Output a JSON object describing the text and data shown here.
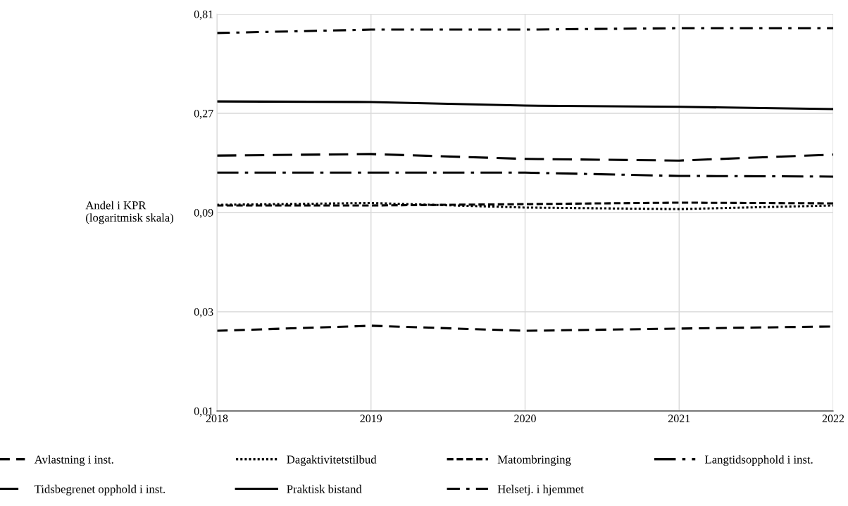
{
  "chart_data": {
    "type": "line",
    "ylabel": "Andel i KPR\n(logaritmisk skala)",
    "x": [
      2018,
      2019,
      2020,
      2021,
      2022
    ],
    "xlim": [
      2018,
      2022
    ],
    "xticks": [
      2018,
      2019,
      2020,
      2021,
      2022
    ],
    "log": "y",
    "ylim": [
      0.01,
      0.81
    ],
    "yticks": [
      {
        "value": 0.01,
        "label": "0,01"
      },
      {
        "value": 0.03,
        "label": "0,03"
      },
      {
        "value": 0.09,
        "label": "0,09"
      },
      {
        "value": 0.27,
        "label": "0,27"
      },
      {
        "value": 0.81,
        "label": "0,81"
      }
    ],
    "grid": true,
    "legend": "bottom",
    "marker": "none",
    "series": [
      {
        "name": "Avlastning i inst.",
        "color": "#000000",
        "line_style": "dashed",
        "values": [
          0.0243,
          0.0257,
          0.0243,
          0.0249,
          0.0255
        ]
      },
      {
        "name": "Dagaktivitetstilbud",
        "color": "#000000",
        "line_style": "dotted",
        "values": [
          0.098,
          0.1,
          0.0951,
          0.0935,
          0.0973
        ]
      },
      {
        "name": "Matombringing",
        "color": "#000000",
        "line_style": "short dash",
        "values": [
          0.0973,
          0.0973,
          0.0988,
          0.1004,
          0.0996
        ]
      },
      {
        "name": "Langtidsopphold i inst.",
        "color": "#000000",
        "line_style": "long dash dot",
        "values": [
          0.14,
          0.14,
          0.14,
          0.135,
          0.134
        ]
      },
      {
        "name": "Tidsbegrenet opphold i inst.",
        "color": "#000000",
        "line_style": "long dash",
        "values": [
          0.169,
          0.172,
          0.163,
          0.16,
          0.171
        ]
      },
      {
        "name": "Praktisk bistand",
        "color": "#000000",
        "line_style": "solid",
        "values": [
          0.308,
          0.306,
          0.294,
          0.29,
          0.283
        ]
      },
      {
        "name": "Helsetj. i hjemmet",
        "color": "#000000",
        "line_style": "dash dot",
        "values": [
          0.657,
          0.682,
          0.682,
          0.693,
          0.693
        ]
      }
    ]
  }
}
